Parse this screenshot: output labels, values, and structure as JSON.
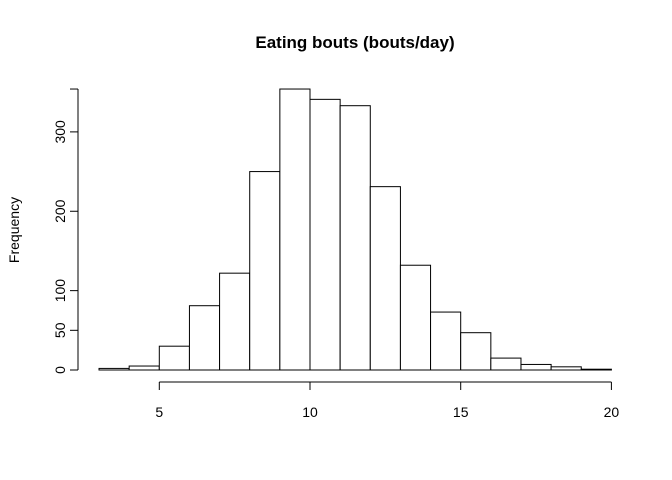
{
  "chart_data": {
    "type": "bar",
    "title": "Eating bouts (bouts/day)",
    "xlabel": "",
    "ylabel": "Frequency",
    "bins": [
      {
        "x0": 3,
        "x1": 4,
        "count": 2
      },
      {
        "x0": 4,
        "x1": 5,
        "count": 5
      },
      {
        "x0": 5,
        "x1": 6,
        "count": 30
      },
      {
        "x0": 6,
        "x1": 7,
        "count": 81
      },
      {
        "x0": 7,
        "x1": 8,
        "count": 122
      },
      {
        "x0": 8,
        "x1": 9,
        "count": 250
      },
      {
        "x0": 9,
        "x1": 10,
        "count": 354
      },
      {
        "x0": 10,
        "x1": 11,
        "count": 341
      },
      {
        "x0": 11,
        "x1": 12,
        "count": 333
      },
      {
        "x0": 12,
        "x1": 13,
        "count": 231
      },
      {
        "x0": 13,
        "x1": 14,
        "count": 132
      },
      {
        "x0": 14,
        "x1": 15,
        "count": 73
      },
      {
        "x0": 15,
        "x1": 16,
        "count": 47
      },
      {
        "x0": 16,
        "x1": 17,
        "count": 15
      },
      {
        "x0": 17,
        "x1": 18,
        "count": 7
      },
      {
        "x0": 18,
        "x1": 19,
        "count": 4
      },
      {
        "x0": 19,
        "x1": 20,
        "count": 1
      }
    ],
    "xlim": [
      3,
      20
    ],
    "ylim": [
      0,
      354
    ],
    "x_ticks": [
      "5",
      "10",
      "15",
      "20"
    ],
    "y_ticks": [
      "0",
      "50",
      "100",
      "200",
      "300"
    ],
    "grid": false
  }
}
